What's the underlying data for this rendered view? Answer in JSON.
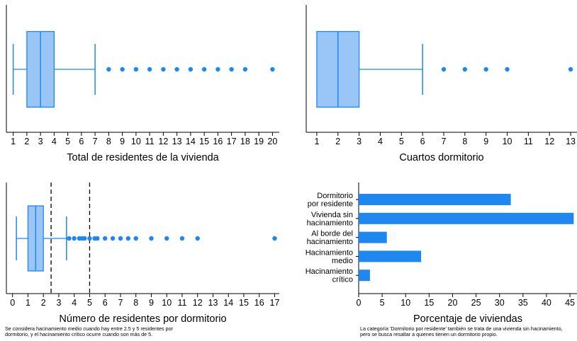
{
  "colors": {
    "box_fill": "#99c6f7",
    "accent": "#1e87f0",
    "axis": "#000000"
  },
  "chart_data": [
    {
      "type": "boxplot",
      "xlabel": "Total de residentes de la vivienda",
      "xlim": [
        0.5,
        20.5
      ],
      "ticks": [
        1,
        2,
        3,
        4,
        5,
        6,
        7,
        8,
        9,
        10,
        11,
        12,
        13,
        14,
        15,
        16,
        17,
        18,
        19,
        20
      ],
      "box": {
        "whisker_low": 1,
        "q1": 2,
        "median": 3,
        "q3": 4,
        "whisker_high": 7
      },
      "outliers": [
        8,
        9,
        10,
        11,
        12,
        13,
        14,
        15,
        16,
        17,
        18,
        20
      ]
    },
    {
      "type": "boxplot",
      "xlabel": "Cuartos dormitorio",
      "xlim": [
        0.5,
        13.3
      ],
      "ticks": [
        1,
        2,
        3,
        4,
        5,
        6,
        7,
        8,
        9,
        10,
        11,
        12,
        13
      ],
      "box": {
        "whisker_low": 1,
        "q1": 1,
        "median": 2,
        "q3": 3,
        "whisker_high": 6
      },
      "outliers": [
        7,
        8,
        9,
        10,
        13
      ]
    },
    {
      "type": "boxplot",
      "xlabel": "Número de residentes por dormitorio",
      "xlim": [
        -0.4,
        17.3
      ],
      "ticks": [
        0,
        1,
        2,
        3,
        4,
        5,
        6,
        7,
        8,
        9,
        10,
        11,
        12,
        13,
        14,
        15,
        16,
        17
      ],
      "box": {
        "whisker_low": 0.25,
        "q1": 1,
        "median": 1.5,
        "q3": 2,
        "whisker_high": 3.5
      },
      "outliers": [
        3.67,
        4,
        4.33,
        4.5,
        4.67,
        5,
        5.33,
        5.5,
        6,
        6.5,
        7,
        7.5,
        8,
        9,
        10,
        11,
        12,
        17
      ],
      "reference_lines": [
        2.5,
        5
      ],
      "note": "Se considera hacinamiento medio cuando hay entre 2.5 y 5 residentes por dormitorio, y el hacinamiento crítico ocurre cuando son más de 5."
    },
    {
      "type": "bar",
      "orientation": "horizontal",
      "xlabel": "Porcentaje de viviendas",
      "xlim": [
        0,
        46.5
      ],
      "ticks": [
        0,
        5,
        10,
        15,
        20,
        25,
        30,
        35,
        40,
        45
      ],
      "categories": [
        [
          "Dormitorio",
          "por residente"
        ],
        [
          "Vivienda sin",
          "hacinamiento"
        ],
        [
          "Al borde del",
          "hacinamiento"
        ],
        [
          "Hacinamiento",
          "medio"
        ],
        [
          "Hacinamiento",
          "crítico"
        ]
      ],
      "values": [
        32.4,
        45.8,
        6.0,
        13.3,
        2.4
      ],
      "note": "La categoría 'Dormitorio por residente' también se trata de una vivienda sin hacinamiento, pero se busca resaltar a quienes tienen un dormitorio propio."
    }
  ]
}
